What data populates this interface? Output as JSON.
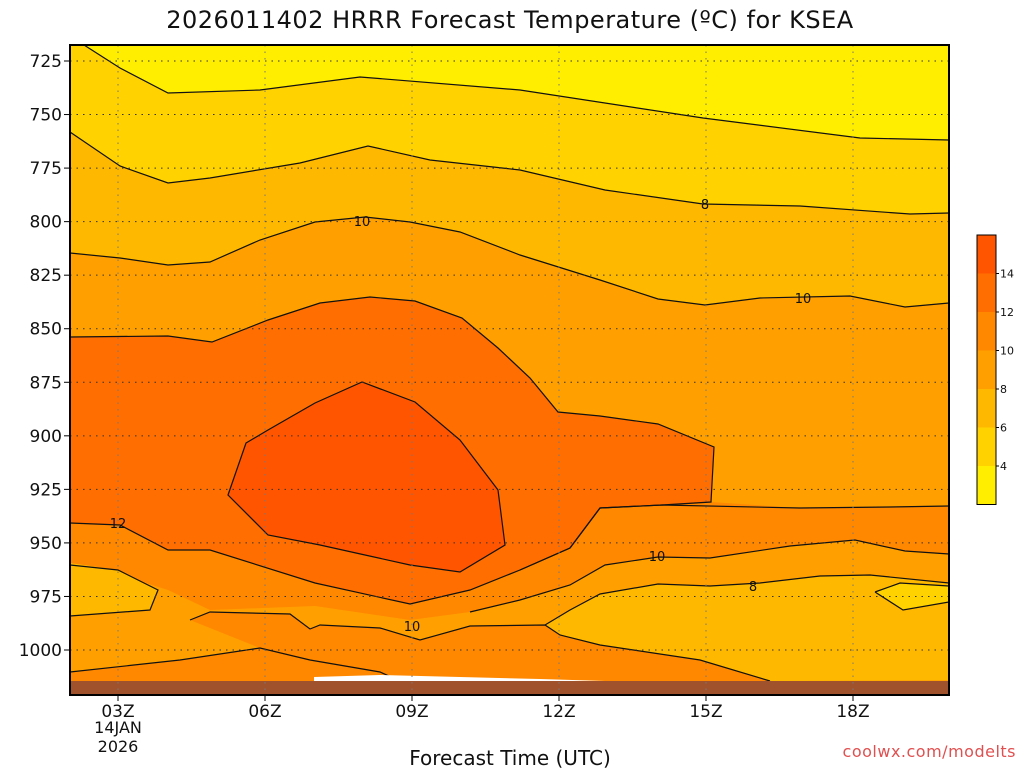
{
  "chart_data": {
    "type": "contour",
    "title": "2026011402 HRRR Forecast Temperature (ºC) for KSEA",
    "xlabel": "Forecast Time (UTC)",
    "ylabel": "",
    "credit": "coolwx.com/modelts",
    "x_ticks": [
      "03Z",
      "06Z",
      "09Z",
      "12Z",
      "15Z",
      "18Z"
    ],
    "x_date_line1": "14JAN",
    "x_date_line2": "2026",
    "y_ticks": [
      725,
      750,
      775,
      800,
      825,
      850,
      875,
      900,
      925,
      950,
      975,
      1000
    ],
    "y_axis": "pressure (hPa), inverted",
    "contour_interval": 2,
    "contour_labels": [
      {
        "value": 10,
        "near": "09Z 790hPa"
      },
      {
        "value": 8,
        "near": "15Z 784hPa"
      },
      {
        "value": 10,
        "near": "17Z 824hPa"
      },
      {
        "value": 12,
        "near": "03Z 931hPa"
      },
      {
        "value": 10,
        "near": "14Z 949hPa"
      },
      {
        "value": 8,
        "near": "16Z 970hPa"
      },
      {
        "value": 10,
        "near": "09Z 991hPa"
      }
    ],
    "colorbar": {
      "labels": [
        "14",
        "12",
        "10",
        "8",
        "6",
        "4"
      ],
      "levels": [
        {
          "range": "14-16",
          "color": "#ff5500"
        },
        {
          "range": "12-14",
          "color": "#ff6e00"
        },
        {
          "range": "10-12",
          "color": "#ff8800"
        },
        {
          "range": "8-10",
          "color": "#ffa000"
        },
        {
          "range": "6-8",
          "color": "#ffb800"
        },
        {
          "range": "4-6",
          "color": "#ffd200"
        },
        {
          "range": "2-4",
          "color": "#ffee00"
        }
      ]
    },
    "ground_color": "#a0522d"
  }
}
